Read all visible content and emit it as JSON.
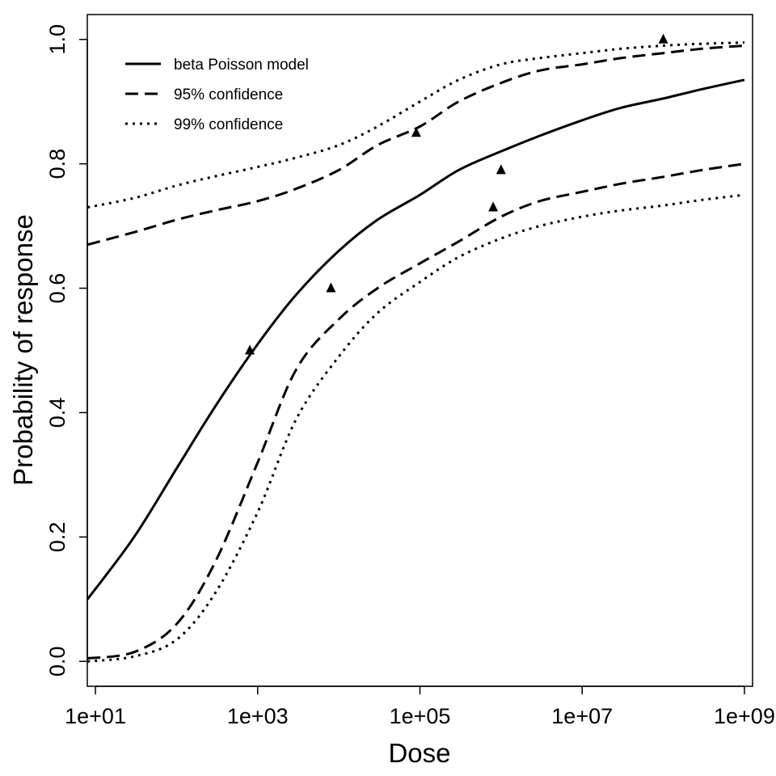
{
  "chart_data": {
    "type": "line",
    "xlabel": "Dose",
    "ylabel": "Probability of response",
    "x_scale": "log10",
    "xlim": [
      7.94,
      1260000000
    ],
    "ylim": [
      -0.04,
      1.04
    ],
    "x_ticks": [
      10,
      1000,
      100000,
      10000000,
      1000000000
    ],
    "x_tick_labels": [
      "1e+01",
      "1e+03",
      "1e+05",
      "1e+07",
      "1e+09"
    ],
    "y_ticks": [
      0.0,
      0.2,
      0.4,
      0.6,
      0.8,
      1.0
    ],
    "y_tick_labels": [
      "0.0",
      "0.2",
      "0.4",
      "0.6",
      "0.8",
      "1.0"
    ],
    "legend": {
      "position": "top-left",
      "entries": [
        {
          "label": "beta Poisson model",
          "style": "solid"
        },
        {
          "label": "95% confidence",
          "style": "dashed"
        },
        {
          "label": "99% confidence",
          "style": "dotted"
        }
      ]
    },
    "series": [
      {
        "name": "beta Poisson model",
        "style": "solid",
        "x": [
          8,
          30,
          100,
          300,
          1000,
          3000,
          10000,
          30000,
          100000,
          300000,
          1000000,
          3000000,
          10000000,
          30000000,
          100000000,
          300000000,
          1000000000
        ],
        "y": [
          0.1,
          0.2,
          0.31,
          0.41,
          0.51,
          0.59,
          0.66,
          0.71,
          0.75,
          0.79,
          0.82,
          0.845,
          0.87,
          0.89,
          0.905,
          0.92,
          0.935
        ]
      },
      {
        "name": "95% confidence",
        "style": "dashed",
        "x": [
          8,
          30,
          100,
          300,
          1000,
          3000,
          10000,
          30000,
          100000,
          300000,
          1000000,
          3000000,
          10000000,
          30000000,
          100000000,
          300000000,
          1000000000
        ],
        "y": [
          0.67,
          0.69,
          0.71,
          0.725,
          0.74,
          0.76,
          0.79,
          0.83,
          0.86,
          0.9,
          0.93,
          0.95,
          0.96,
          0.97,
          0.978,
          0.985,
          0.99
        ]
      },
      {
        "name": "95% confidence",
        "style": "dashed",
        "x": [
          8,
          30,
          100,
          300,
          1000,
          3000,
          10000,
          30000,
          100000,
          300000,
          1000000,
          3000000,
          10000000,
          30000000,
          100000000,
          300000000,
          1000000000
        ],
        "y": [
          0.005,
          0.015,
          0.06,
          0.16,
          0.32,
          0.47,
          0.55,
          0.6,
          0.64,
          0.675,
          0.715,
          0.74,
          0.755,
          0.768,
          0.779,
          0.79,
          0.8
        ]
      },
      {
        "name": "99% confidence",
        "style": "dotted",
        "x": [
          8,
          30,
          100,
          300,
          1000,
          3000,
          10000,
          30000,
          100000,
          300000,
          1000000,
          3000000,
          10000000,
          30000000,
          100000000,
          300000000,
          1000000000
        ],
        "y": [
          0.73,
          0.745,
          0.765,
          0.78,
          0.795,
          0.81,
          0.83,
          0.86,
          0.9,
          0.935,
          0.96,
          0.97,
          0.978,
          0.985,
          0.99,
          0.993,
          0.995
        ]
      },
      {
        "name": "99% confidence",
        "style": "dotted",
        "x": [
          8,
          30,
          100,
          300,
          1000,
          3000,
          10000,
          30000,
          100000,
          300000,
          1000000,
          3000000,
          10000000,
          30000000,
          100000000,
          300000000,
          1000000000
        ],
        "y": [
          0.0,
          0.008,
          0.035,
          0.11,
          0.24,
          0.39,
          0.49,
          0.56,
          0.61,
          0.65,
          0.68,
          0.7,
          0.715,
          0.725,
          0.733,
          0.742,
          0.75
        ]
      }
    ],
    "points": {
      "marker": "triangle",
      "x": [
        800,
        8000,
        90000,
        800000,
        1000000,
        100000000
      ],
      "y": [
        0.5,
        0.6,
        0.85,
        0.73,
        0.79,
        1.0
      ]
    }
  }
}
